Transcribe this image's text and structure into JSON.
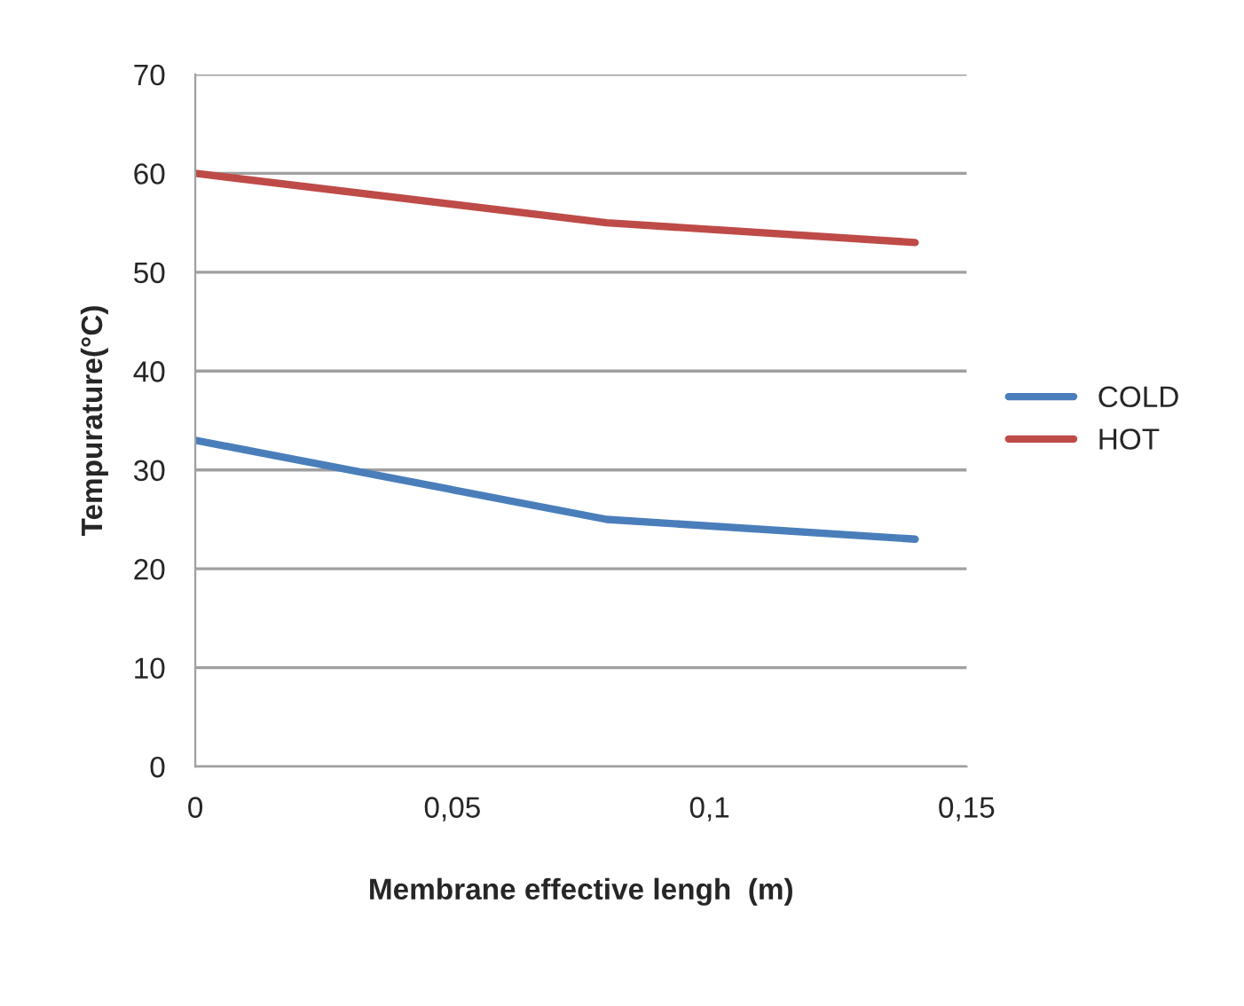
{
  "chart_data": {
    "type": "line",
    "xlabel": "Membrane effective lengh  (m)",
    "ylabel": "Tempurature(°C)",
    "xlim": [
      0,
      0.15
    ],
    "xticks": [
      0,
      {
        "value": 0.05,
        "label": "0,05"
      },
      {
        "value": 0.1,
        "label": "0,1"
      },
      {
        "value": 0.15,
        "label": "0,15"
      }
    ],
    "ylim": [
      0,
      70
    ],
    "yticks": [
      0,
      10,
      20,
      30,
      40,
      50,
      60,
      70
    ],
    "grid": "y",
    "legend": "right",
    "line_style": "solid",
    "marker": "none",
    "series": [
      {
        "name": "COLD",
        "color": "#4a7ebb",
        "x": [
          0,
          0.08,
          0.14
        ],
        "values": [
          33,
          25,
          23
        ]
      },
      {
        "name": "HOT",
        "color": "#be4b48",
        "x": [
          0,
          0.08,
          0.14
        ],
        "values": [
          60,
          55,
          53
        ]
      }
    ]
  }
}
